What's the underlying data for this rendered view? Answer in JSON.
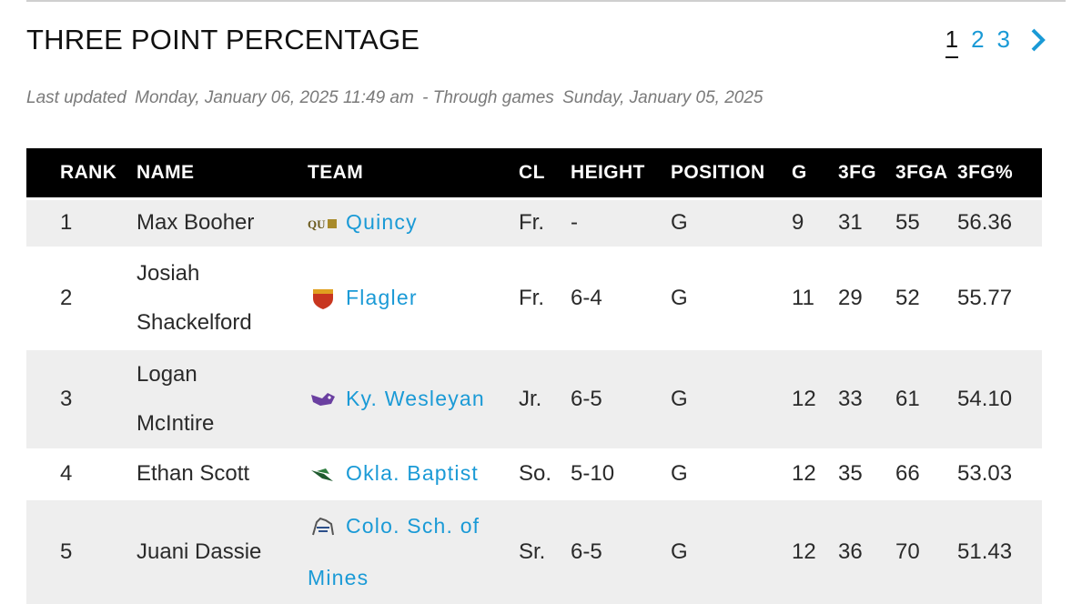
{
  "header": {
    "title": "THREE POINT PERCENTAGE",
    "pages": [
      "1",
      "2",
      "3"
    ],
    "current_page": "1"
  },
  "updated": {
    "label1": "Last updated",
    "date1": "Monday, January 06, 2025 11:49 am",
    "label2": "- Through games",
    "date2": "Sunday, January 05, 2025"
  },
  "table": {
    "columns": [
      "RANK",
      "NAME",
      "TEAM",
      "CL",
      "HEIGHT",
      "POSITION",
      "G",
      "3FG",
      "3FGA",
      "3FG%"
    ],
    "rows": [
      {
        "rank": "1",
        "name_line1": "Max Booher",
        "name_line2": "",
        "team": "Quincy",
        "logo": "quincy-logo",
        "cl": "Fr.",
        "height": "-",
        "position": "G",
        "g": "9",
        "fg3": "31",
        "fga3": "55",
        "pct": "56.36"
      },
      {
        "rank": "2",
        "name_line1": "Josiah",
        "name_line2": "Shackelford",
        "team": "Flagler",
        "logo": "flagler-logo",
        "cl": "Fr.",
        "height": "6-4",
        "position": "G",
        "g": "11",
        "fg3": "29",
        "fga3": "52",
        "pct": "55.77"
      },
      {
        "rank": "3",
        "name_line1": "Logan",
        "name_line2": "McIntire",
        "team": "Ky. Wesleyan",
        "logo": "ky-wesleyan-logo",
        "cl": "Jr.",
        "height": "6-5",
        "position": "G",
        "g": "12",
        "fg3": "33",
        "fga3": "61",
        "pct": "54.10"
      },
      {
        "rank": "4",
        "name_line1": "Ethan Scott",
        "name_line2": "",
        "team": "Okla. Baptist",
        "logo": "okla-baptist-logo",
        "cl": "So.",
        "height": "5-10",
        "position": "G",
        "g": "12",
        "fg3": "35",
        "fga3": "66",
        "pct": "53.03"
      },
      {
        "rank": "5",
        "name_line1": "Juani Dassie",
        "name_line2": "",
        "team": "Colo. Sch. of Mines",
        "logo": "colo-mines-logo",
        "cl": "Sr.",
        "height": "6-5",
        "position": "G",
        "g": "12",
        "fg3": "36",
        "fga3": "70",
        "pct": "51.43"
      }
    ]
  },
  "colors": {
    "link": "#1a9ad6",
    "header_bg": "#000000",
    "stripe": "#eeeeee"
  }
}
